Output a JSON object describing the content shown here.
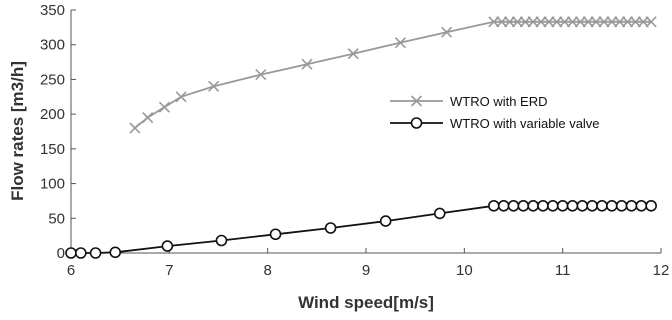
{
  "chart_data": {
    "type": "line",
    "xlabel": "Wind speed[m/s]",
    "ylabel": "Flow  rates [m3/h]",
    "xlim": [
      6,
      12
    ],
    "ylim": [
      0,
      350
    ],
    "xticks": [
      6,
      7,
      8,
      9,
      10,
      11,
      12
    ],
    "yticks": [
      0,
      50,
      100,
      150,
      200,
      250,
      300,
      350
    ],
    "grid": false,
    "legend_position": "center-right",
    "series": [
      {
        "name": "WTRO with ERD",
        "color": "#999999",
        "marker": "x",
        "x": [
          6.65,
          6.78,
          6.95,
          7.12,
          7.45,
          7.93,
          8.4,
          8.87,
          9.35,
          9.82,
          10.3,
          10.38,
          10.46,
          10.54,
          10.62,
          10.7,
          10.78,
          10.86,
          10.94,
          11.02,
          11.1,
          11.18,
          11.26,
          11.34,
          11.42,
          11.5,
          11.58,
          11.66,
          11.74,
          11.82,
          11.9
        ],
        "y": [
          180,
          195,
          210,
          225,
          240,
          257,
          272,
          287,
          303,
          318,
          333,
          333,
          333,
          333,
          333,
          333,
          333,
          333,
          333,
          333,
          333,
          333,
          333,
          333,
          333,
          333,
          333,
          333,
          333,
          333,
          333
        ]
      },
      {
        "name": "WTRO with variable valve",
        "color": "#111111",
        "marker": "o",
        "x": [
          6.0,
          6.1,
          6.25,
          6.45,
          6.98,
          7.53,
          8.08,
          8.64,
          9.2,
          9.75,
          10.3,
          10.4,
          10.5,
          10.6,
          10.7,
          10.8,
          10.9,
          11.0,
          11.1,
          11.2,
          11.3,
          11.4,
          11.5,
          11.6,
          11.7,
          11.8,
          11.9
        ],
        "y": [
          0,
          0,
          0,
          1,
          10,
          18,
          27,
          36,
          46,
          57,
          68,
          68,
          68,
          68,
          68,
          68,
          68,
          68,
          68,
          68,
          68,
          68,
          68,
          68,
          68,
          68,
          68
        ]
      }
    ]
  }
}
